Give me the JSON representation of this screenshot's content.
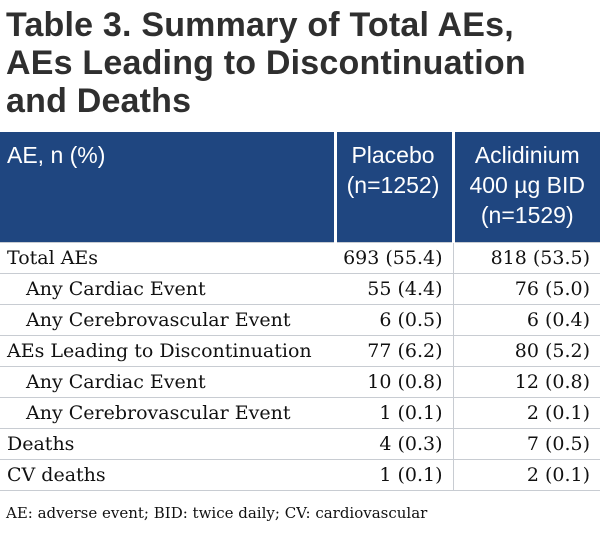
{
  "title": {
    "line1": "Table 3. Summary of Total AEs,",
    "line2": "AEs Leading to Discontinuation",
    "line3": "and Deaths"
  },
  "header": {
    "col1": "AE, n (%)",
    "col2": [
      "Placebo",
      "(n=1252)"
    ],
    "col3": [
      "Aclidinium",
      "400 µg BID",
      "(n=1529)"
    ]
  },
  "rows": [
    {
      "label": "Total AEs",
      "placebo": "693 (55.4)",
      "aclidinium": "818 (53.5)"
    },
    {
      "label": "Any Cardiac Event",
      "placebo": "55 (4.4)",
      "aclidinium": "76 (5.0)"
    },
    {
      "label": "Any Cerebrovascular Event",
      "placebo": "6 (0.5)",
      "aclidinium": "6 (0.4)"
    },
    {
      "label": "AEs Leading to Discontinuation",
      "placebo": "77 (6.2)",
      "aclidinium": "80 (5.2)"
    },
    {
      "label": "Any Cardiac Event",
      "placebo": "10 (0.8)",
      "aclidinium": "12 (0.8)"
    },
    {
      "label": "Any Cerebrovascular Event",
      "placebo": "1 (0.1)",
      "aclidinium": "2 (0.1)"
    },
    {
      "label": "Deaths",
      "placebo": "4 (0.3)",
      "aclidinium": "7 (0.5)"
    },
    {
      "label": "CV deaths",
      "placebo": "1 (0.1)",
      "aclidinium": "2 (0.1)"
    }
  ],
  "footnote": "AE: adverse event; BID: twice daily; CV: cardiovascular",
  "colors": {
    "header_bg": "#1f4680",
    "title_text": "#2f2f2f",
    "rule": "#c8ccd2"
  }
}
